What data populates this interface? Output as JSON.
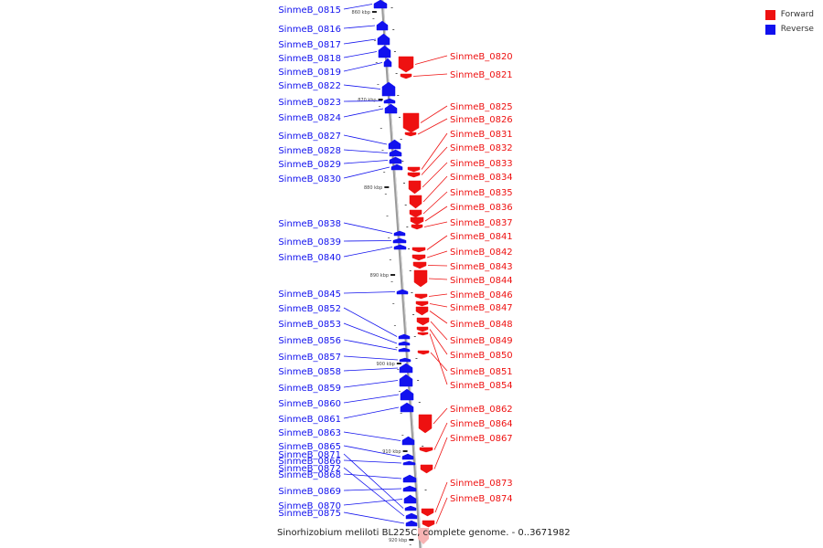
{
  "title": "Sinorhizobium meliloti BL225C, complete genome. - 0..3671982",
  "legend": [
    {
      "label": "Forward",
      "color": "#ee1111"
    },
    {
      "label": "Reverse",
      "color": "#1111ee"
    }
  ],
  "scale_labels": [
    "860 kbp",
    "870 kbp",
    "880 kbp",
    "890 kbp",
    "900 kbp",
    "910 kbp",
    "920 kbp"
  ],
  "genes": [
    {
      "name": "SinmeB_0815",
      "strand": "reverse"
    },
    {
      "name": "SinmeB_0816",
      "strand": "reverse"
    },
    {
      "name": "SinmeB_0817",
      "strand": "reverse"
    },
    {
      "name": "SinmeB_0818",
      "strand": "reverse"
    },
    {
      "name": "SinmeB_0819",
      "strand": "reverse"
    },
    {
      "name": "SinmeB_0820",
      "strand": "forward"
    },
    {
      "name": "SinmeB_0821",
      "strand": "forward"
    },
    {
      "name": "SinmeB_0822",
      "strand": "reverse"
    },
    {
      "name": "SinmeB_0823",
      "strand": "reverse"
    },
    {
      "name": "SinmeB_0824",
      "strand": "reverse"
    },
    {
      "name": "SinmeB_0825",
      "strand": "forward"
    },
    {
      "name": "SinmeB_0826",
      "strand": "forward"
    },
    {
      "name": "SinmeB_0827",
      "strand": "reverse"
    },
    {
      "name": "SinmeB_0828",
      "strand": "reverse"
    },
    {
      "name": "SinmeB_0829",
      "strand": "reverse"
    },
    {
      "name": "SinmeB_0830",
      "strand": "reverse"
    },
    {
      "name": "SinmeB_0831",
      "strand": "forward"
    },
    {
      "name": "SinmeB_0832",
      "strand": "forward"
    },
    {
      "name": "SinmeB_0833",
      "strand": "forward"
    },
    {
      "name": "SinmeB_0834",
      "strand": "forward"
    },
    {
      "name": "SinmeB_0835",
      "strand": "forward"
    },
    {
      "name": "SinmeB_0836",
      "strand": "forward"
    },
    {
      "name": "SinmeB_0837",
      "strand": "forward"
    },
    {
      "name": "SinmeB_0838",
      "strand": "reverse"
    },
    {
      "name": "SinmeB_0839",
      "strand": "reverse"
    },
    {
      "name": "SinmeB_0840",
      "strand": "reverse"
    },
    {
      "name": "SinmeB_0841",
      "strand": "forward"
    },
    {
      "name": "SinmeB_0842",
      "strand": "forward"
    },
    {
      "name": "SinmeB_0843",
      "strand": "forward"
    },
    {
      "name": "SinmeB_0844",
      "strand": "forward"
    },
    {
      "name": "SinmeB_0845",
      "strand": "reverse"
    },
    {
      "name": "SinmeB_0846",
      "strand": "forward"
    },
    {
      "name": "SinmeB_0847",
      "strand": "forward"
    },
    {
      "name": "SinmeB_0848",
      "strand": "forward"
    },
    {
      "name": "SinmeB_0849",
      "strand": "forward"
    },
    {
      "name": "SinmeB_0850",
      "strand": "forward"
    },
    {
      "name": "SinmeB_0851",
      "strand": "forward"
    },
    {
      "name": "SinmeB_0852",
      "strand": "reverse"
    },
    {
      "name": "SinmeB_0853",
      "strand": "reverse"
    },
    {
      "name": "SinmeB_0854",
      "strand": "forward"
    },
    {
      "name": "SinmeB_0856",
      "strand": "reverse"
    },
    {
      "name": "SinmeB_0857",
      "strand": "reverse"
    },
    {
      "name": "SinmeB_0858",
      "strand": "reverse"
    },
    {
      "name": "SinmeB_0859",
      "strand": "reverse"
    },
    {
      "name": "SinmeB_0860",
      "strand": "reverse"
    },
    {
      "name": "SinmeB_0861",
      "strand": "reverse"
    },
    {
      "name": "SinmeB_0862",
      "strand": "forward"
    },
    {
      "name": "SinmeB_0863",
      "strand": "reverse"
    },
    {
      "name": "SinmeB_0864",
      "strand": "forward"
    },
    {
      "name": "SinmeB_0865",
      "strand": "reverse"
    },
    {
      "name": "SinmeB_0866",
      "strand": "reverse"
    },
    {
      "name": "SinmeB_0867",
      "strand": "forward"
    },
    {
      "name": "SinmeB_0868",
      "strand": "reverse"
    },
    {
      "name": "SinmeB_0869",
      "strand": "reverse"
    },
    {
      "name": "SinmeB_0870",
      "strand": "reverse"
    },
    {
      "name": "SinmeB_0871",
      "strand": "reverse"
    },
    {
      "name": "SinmeB_0872",
      "strand": "reverse"
    },
    {
      "name": "SinmeB_0873",
      "strand": "forward"
    },
    {
      "name": "SinmeB_0874",
      "strand": "forward"
    },
    {
      "name": "SinmeB_0875",
      "strand": "reverse"
    }
  ]
}
